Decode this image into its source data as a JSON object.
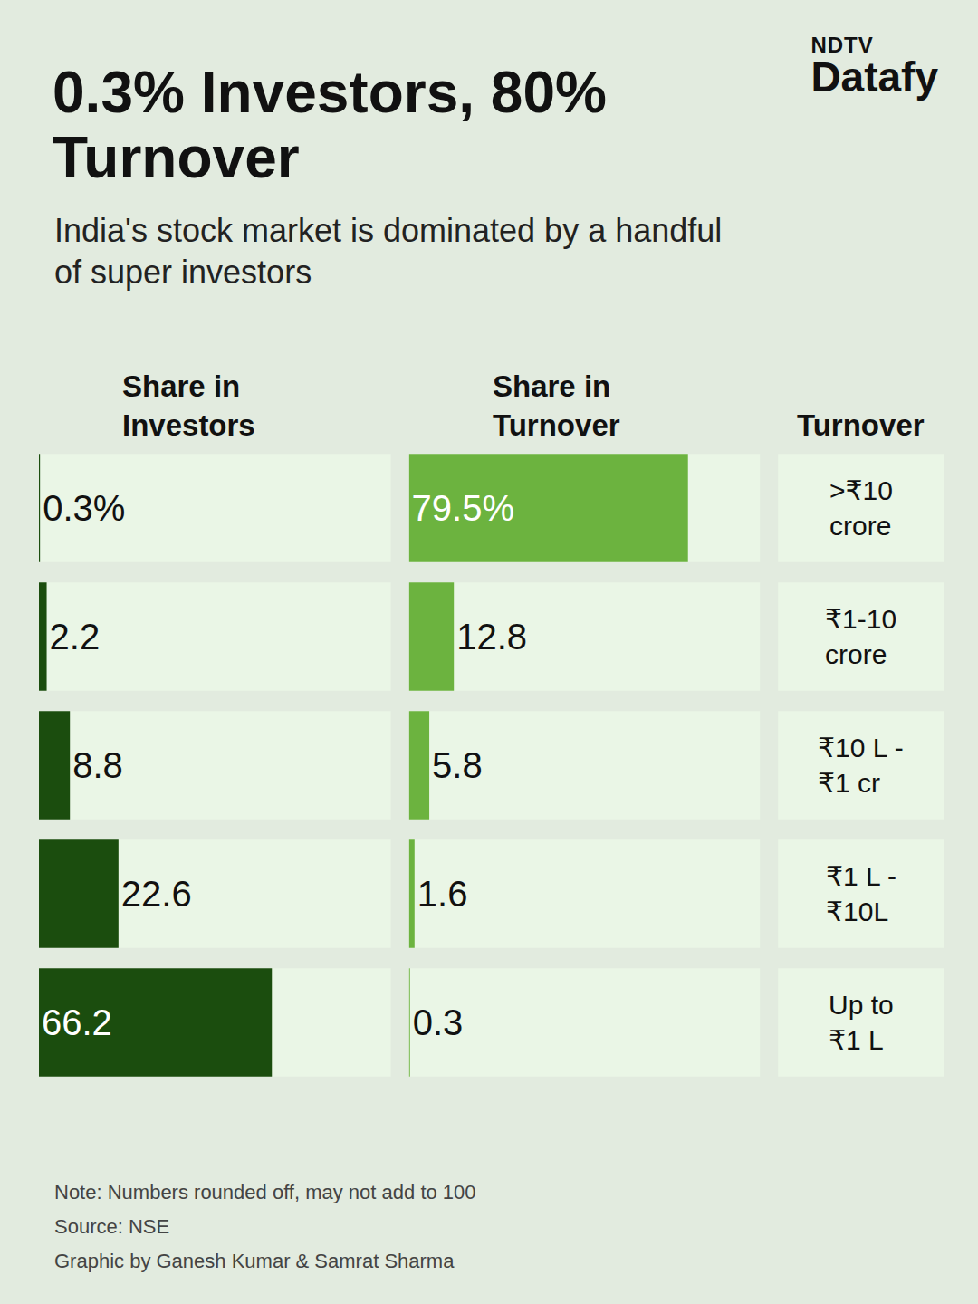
{
  "chart_data": {
    "type": "bar",
    "orientation": "horizontal",
    "brand": [
      "NDTV",
      "Datafy"
    ],
    "title": "0.3% Investors, 80% Turnover",
    "subtitle": "India's stock market is dominated by a handful of super investors",
    "category_title": "Turnover",
    "categories": [
      ">₹10 crore",
      "₹1-10 crore",
      "₹10 L - ₹1 cr",
      "₹1 L - ₹10L",
      "Up to ₹1 L"
    ],
    "series": [
      {
        "name": "Share in Investors",
        "color": "#1b4d0e",
        "values": [
          0.3,
          2.2,
          8.8,
          22.6,
          66.2
        ],
        "value_labels": [
          "0.3%",
          "2.2",
          "8.8",
          "22.6",
          "66.2"
        ]
      },
      {
        "name": "Share in Turnover",
        "color": "#6cb33f",
        "values": [
          79.5,
          12.8,
          5.8,
          1.6,
          0.3
        ],
        "value_labels": [
          "79.5%",
          "12.8",
          "5.8",
          "1.6",
          "0.3"
        ]
      }
    ],
    "xlim": [
      0,
      100
    ],
    "tick_labels": false,
    "grid": false,
    "data_labels": true,
    "notes": [
      "Note: Numbers rounded off, may not add to 100",
      "Source: NSE",
      "Graphic by Ganesh Kumar & Samrat Sharma"
    ]
  }
}
